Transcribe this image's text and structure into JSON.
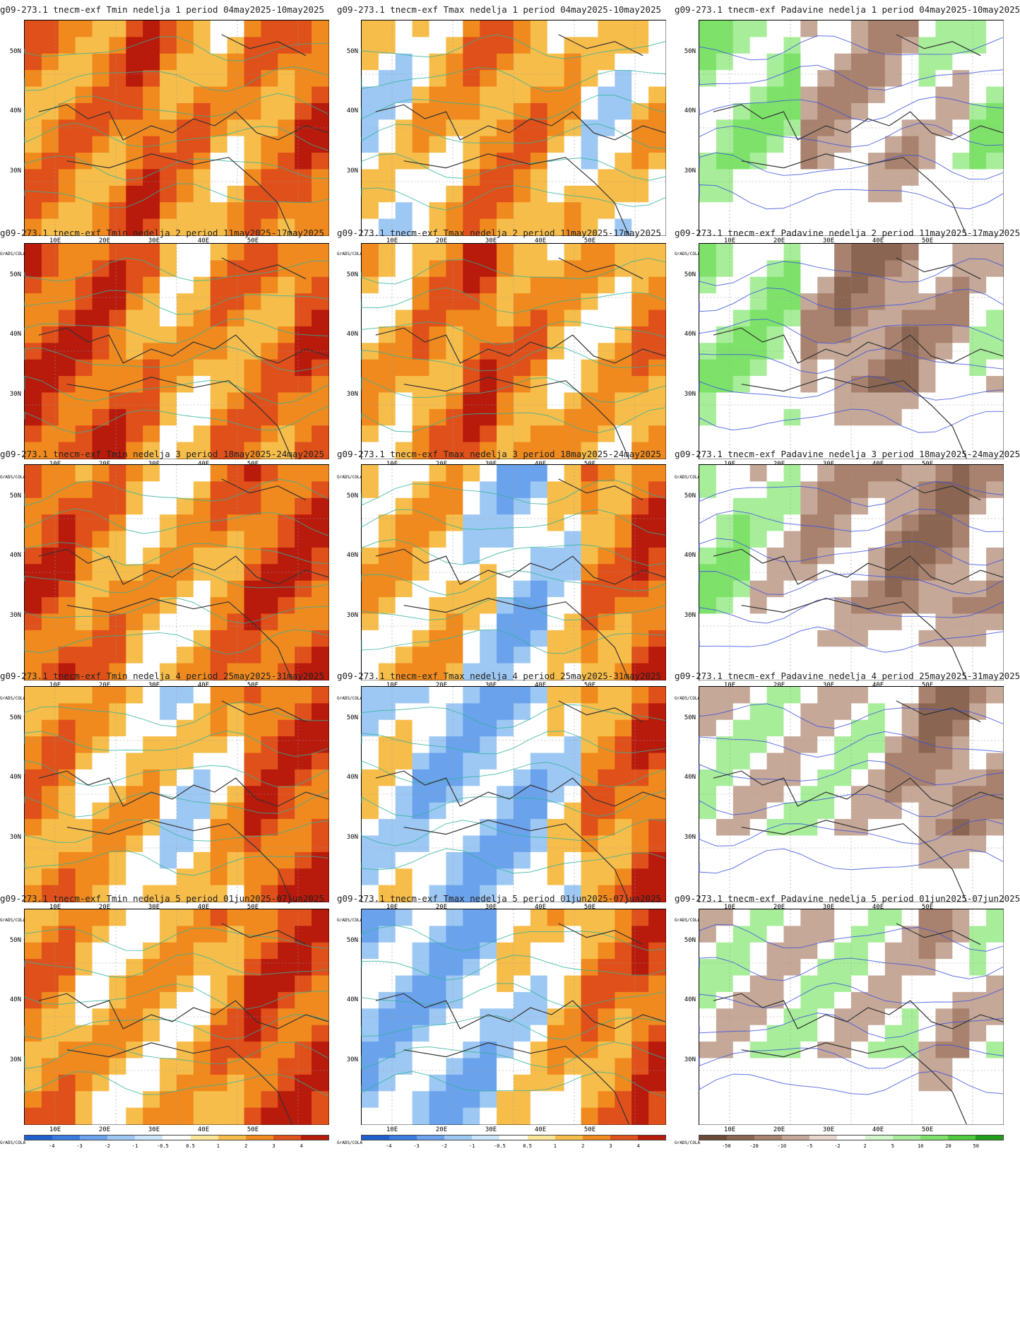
{
  "panels": [
    {
      "title": "g09-273.1 tnecm-exf Tmin nedelja 1 period 04may2025-10may2025",
      "variable": "Tmin",
      "scheme": "temp"
    },
    {
      "title": "g09-273.1 tnecm-exf Tmax nedelja 1 period 04may2025-10may2025",
      "variable": "Tmax",
      "scheme": "temp"
    },
    {
      "title": "g09-273.1 tnecm-exf Padavine nedelja 1 period 04may2025-10may2025",
      "variable": "Padavine",
      "scheme": "precip"
    },
    {
      "title": "g09-273.1 tnecm-exf Tmin nedelja 2 period 11may2025-17may2025",
      "variable": "Tmin",
      "scheme": "temp"
    },
    {
      "title": "g09-273.1 tnecm-exf Tmax nedelja 2 period 11may2025-17may2025",
      "variable": "Tmax",
      "scheme": "temp"
    },
    {
      "title": "g09-273.1 tnecm-exf Padavine nedelja 2 period 11may2025-17may2025",
      "variable": "Padavine",
      "scheme": "precip"
    },
    {
      "title": "g09-273.1 tnecm-exf Tmin nedelja 3 period 18may2025-24may2025",
      "variable": "Tmin",
      "scheme": "temp"
    },
    {
      "title": "g09-273.1 tnecm-exf Tmax nedelja 3 period 18may2025-24may2025",
      "variable": "Tmax",
      "scheme": "temp"
    },
    {
      "title": "g09-273.1 tnecm-exf Padavine nedelja 3 period 18may2025-24may2025",
      "variable": "Padavine",
      "scheme": "precip"
    },
    {
      "title": "g09-273.1 tnecm-exf Tmin nedelja 4 period 25may2025-31may2025",
      "variable": "Tmin",
      "scheme": "temp"
    },
    {
      "title": "g09-273.1 tnecm-exf Tmax nedelja 4 period 25may2025-31may2025",
      "variable": "Tmax",
      "scheme": "temp"
    },
    {
      "title": "g09-273.1 tnecm-exf Padavine nedelja 4 period 25may2025-31may2025",
      "variable": "Padavine",
      "scheme": "precip"
    },
    {
      "title": "g09-273.1 tnecm-exf Tmin nedelja 5 period 01jun2025-07jun2025",
      "variable": "Tmin",
      "scheme": "temp"
    },
    {
      "title": "g09-273.1 tnecm-exf Tmax nedelja 5 period 01jun2025-07jun2025",
      "variable": "Tmax",
      "scheme": "temp"
    },
    {
      "title": "g09-273.1 tnecm-exf Padavine nedelja 5 period 01jun2025-07jun2025",
      "variable": "Padavine",
      "scheme": "precip"
    }
  ],
  "lat_labels": [
    "50N",
    "40N",
    "30N"
  ],
  "lon_labels": [
    "10E",
    "20E",
    "30E",
    "40E",
    "50E"
  ],
  "grads_label": "GrADS/COLA",
  "colorbars": {
    "temp": {
      "labels": [
        "-4",
        "-3",
        "-2",
        "-1",
        "-0.5",
        "0.5",
        "1",
        "2",
        "3",
        "4"
      ],
      "colors": [
        "#1f5fd0",
        "#3b7ae0",
        "#6aa2ec",
        "#9ec8f4",
        "#cde6fa",
        "#ffffff",
        "#fbe79a",
        "#f7bd4a",
        "#f08a1e",
        "#e0501a",
        "#b81a0c"
      ]
    },
    "precip": {
      "labels": [
        "-50",
        "-20",
        "-10",
        "-5",
        "-2",
        "2",
        "5",
        "10",
        "20",
        "50"
      ],
      "colors": [
        "#6b4a3a",
        "#8a6552",
        "#a8826e",
        "#c6a898",
        "#e8d6cc",
        "#ffffff",
        "#d4f7cc",
        "#a8ee9a",
        "#7ee26a",
        "#4ecb3c",
        "#1f9e18"
      ]
    }
  },
  "anomaly_fields": {
    "Tmin": [
      [
        2,
        2,
        3,
        2,
        1,
        2,
        3
      ],
      [
        3,
        3,
        2,
        1,
        2,
        2,
        3
      ],
      [
        3,
        2,
        1,
        1,
        2,
        3,
        3
      ],
      [
        2,
        1,
        1,
        0,
        1,
        3,
        3
      ],
      [
        2,
        1,
        1,
        1,
        2,
        3,
        3
      ]
    ],
    "Tmax": [
      [
        0,
        1,
        2,
        2,
        1,
        0,
        1
      ],
      [
        1,
        2,
        3,
        2,
        1,
        1,
        2
      ],
      [
        1,
        1,
        0,
        -1,
        0,
        2,
        3
      ],
      [
        0,
        -1,
        -1,
        -1,
        0,
        2,
        3
      ],
      [
        -1,
        -1,
        -1,
        0,
        1,
        2,
        3
      ]
    ],
    "Padavine": [
      [
        1,
        1,
        -1,
        -1,
        -1,
        0,
        1
      ],
      [
        1,
        1,
        -1,
        -2,
        -2,
        -1,
        0
      ],
      [
        1,
        0,
        -1,
        -1,
        -2,
        -2,
        -1
      ],
      [
        0,
        0,
        0,
        0,
        -1,
        -2,
        -1
      ],
      [
        0,
        0,
        0,
        0,
        0,
        -1,
        0
      ]
    ]
  }
}
